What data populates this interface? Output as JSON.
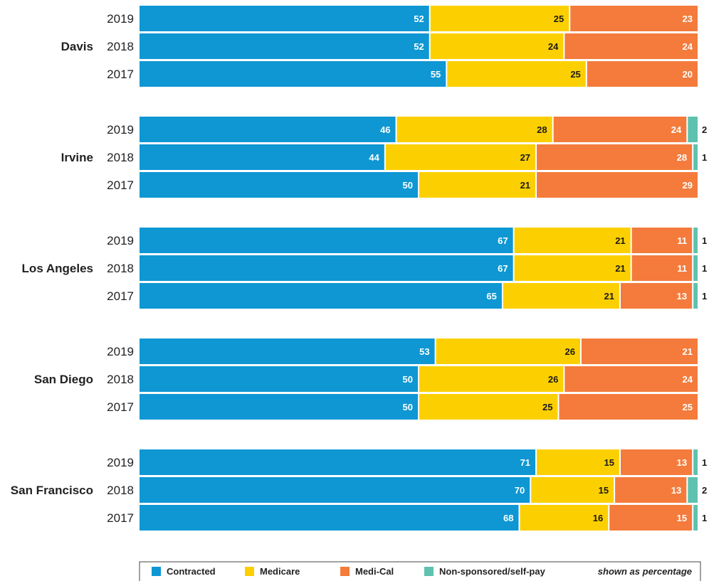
{
  "chart_data": {
    "type": "bar",
    "orientation": "horizontal",
    "stacked": true,
    "unit_note": "shown as percentage",
    "groups": [
      {
        "name": "Davis",
        "rows": [
          {
            "year": "2019",
            "values": [
              52,
              25,
              23,
              0
            ]
          },
          {
            "year": "2018",
            "values": [
              52,
              24,
              24,
              0
            ]
          },
          {
            "year": "2017",
            "values": [
              55,
              25,
              20,
              0
            ]
          }
        ]
      },
      {
        "name": "Irvine",
        "rows": [
          {
            "year": "2019",
            "values": [
              46,
              28,
              24,
              2
            ]
          },
          {
            "year": "2018",
            "values": [
              44,
              27,
              28,
              1
            ]
          },
          {
            "year": "2017",
            "values": [
              50,
              21,
              29,
              0
            ]
          }
        ]
      },
      {
        "name": "Los Angeles",
        "rows": [
          {
            "year": "2019",
            "values": [
              67,
              21,
              11,
              1
            ]
          },
          {
            "year": "2018",
            "values": [
              67,
              21,
              11,
              1
            ]
          },
          {
            "year": "2017",
            "values": [
              65,
              21,
              13,
              1
            ]
          }
        ]
      },
      {
        "name": "San Diego",
        "rows": [
          {
            "year": "2019",
            "values": [
              53,
              26,
              21,
              0
            ]
          },
          {
            "year": "2018",
            "values": [
              50,
              26,
              24,
              0
            ]
          },
          {
            "year": "2017",
            "values": [
              50,
              25,
              25,
              0
            ]
          }
        ]
      },
      {
        "name": "San Francisco",
        "rows": [
          {
            "year": "2019",
            "values": [
              71,
              15,
              13,
              1
            ]
          },
          {
            "year": "2018",
            "values": [
              70,
              15,
              13,
              2
            ]
          },
          {
            "year": "2017",
            "values": [
              68,
              16,
              15,
              1
            ]
          }
        ]
      }
    ],
    "series": [
      {
        "name": "Contracted",
        "color": "#0e97d3",
        "label_color": "#ffffff"
      },
      {
        "name": "Medicare",
        "color": "#fcd000",
        "label_color": "#1a1a1a"
      },
      {
        "name": "Medi-Cal",
        "color": "#f47b3c",
        "label_color": "#ffffff"
      },
      {
        "name": "Non-sponsored/self-pay",
        "color": "#5fc1b0",
        "label_color": "#1a1a1a"
      }
    ],
    "xlim": [
      0,
      100
    ],
    "legend_position": "bottom"
  }
}
